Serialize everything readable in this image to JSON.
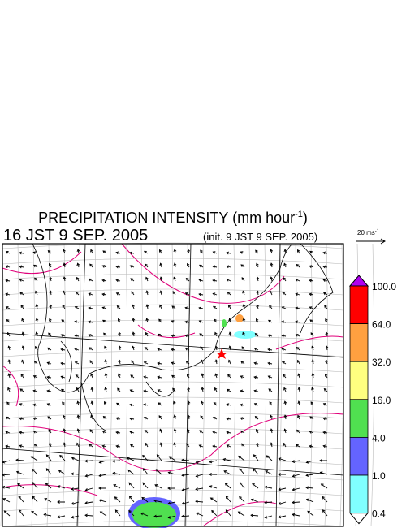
{
  "title": {
    "main": "PRECIPITATION INTENSITY (mm hour",
    "superscript": "-1",
    "close": ")"
  },
  "valid_time": "16 JST 9 SEP. 2005",
  "init_time": "(init. 9 JST 9 SEP. 2005)",
  "wind_scale": {
    "label": "20 ms",
    "superscript": "-1"
  },
  "colorbar": {
    "over_color": "#b000f0",
    "under_color": "#ffffff",
    "levels": [
      {
        "label": "100.0",
        "color": "#ff0000"
      },
      {
        "label": "64.0",
        "color": "#ffa040"
      },
      {
        "label": "32.0",
        "color": "#ffff80"
      },
      {
        "label": "16.0",
        "color": "#50e050"
      },
      {
        "label": "4.0",
        "color": "#6464ff"
      },
      {
        "label": "1.0",
        "color": "#80ffff"
      },
      {
        "label": "0.4"
      }
    ]
  }
}
